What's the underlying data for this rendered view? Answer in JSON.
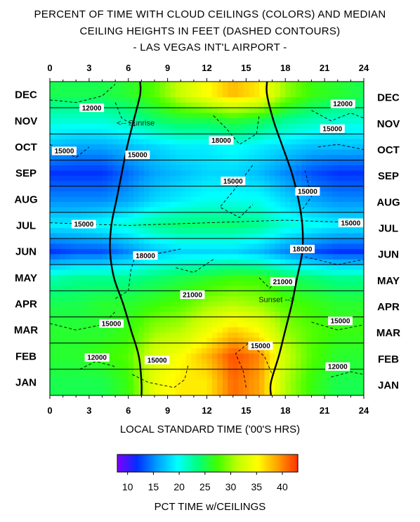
{
  "chart_data": {
    "type": "heatmap",
    "title_lines": [
      "PERCENT OF TIME WITH CLOUD CEILINGS (COLORS) AND MEDIAN",
      "CEILING HEIGHTS IN FEET (DASHED CONTOURS)",
      "- LAS VEGAS INT'L AIRPORT -"
    ],
    "xlabel": "LOCAL STANDARD TIME ('00'S HRS)",
    "x_ticks": [
      "0",
      "3",
      "6",
      "9",
      "12",
      "15",
      "18",
      "21",
      "24"
    ],
    "xlim": [
      0,
      24
    ],
    "y_categories": [
      "JAN",
      "FEB",
      "MAR",
      "APR",
      "MAY",
      "JUN",
      "JUL",
      "AUG",
      "SEP",
      "OCT",
      "NOV",
      "DEC"
    ],
    "colorbar": {
      "label": "PCT TIME w/CEILINGS",
      "ticks": [
        "10",
        "15",
        "20",
        "25",
        "30",
        "35",
        "40"
      ],
      "range": [
        8,
        43
      ],
      "colors": [
        "#7f00ff",
        "#0030ff",
        "#00a0ff",
        "#00ffff",
        "#00ff7f",
        "#40ff00",
        "#c0ff00",
        "#ffff00",
        "#ffa000",
        "#ff3000"
      ]
    },
    "hours": [
      0,
      2,
      4,
      6,
      8,
      10,
      12,
      14,
      16,
      18,
      20,
      22,
      24
    ],
    "values": [
      [
        25,
        25,
        25,
        27,
        34,
        36,
        36,
        41,
        39,
        31,
        27,
        25,
        25
      ],
      [
        26,
        26,
        27,
        28,
        33,
        35,
        38,
        42,
        40,
        32,
        28,
        26,
        26
      ],
      [
        26,
        26,
        26,
        27,
        30,
        31,
        34,
        37,
        35,
        30,
        28,
        27,
        27
      ],
      [
        25,
        25,
        26,
        26,
        27,
        28,
        30,
        31,
        30,
        28,
        27,
        26,
        26
      ],
      [
        22,
        23,
        23,
        23,
        24,
        25,
        26,
        27,
        27,
        25,
        24,
        23,
        23
      ],
      [
        12,
        13,
        13,
        15,
        17,
        18,
        18,
        18,
        17,
        15,
        13,
        12,
        12
      ],
      [
        19,
        19,
        20,
        21,
        23,
        24,
        24,
        24,
        23,
        21,
        20,
        19,
        19
      ],
      [
        15,
        15,
        15,
        16,
        18,
        19,
        20,
        20,
        20,
        18,
        16,
        15,
        15
      ],
      [
        12,
        12,
        12,
        14,
        16,
        17,
        18,
        18,
        17,
        15,
        13,
        12,
        12
      ],
      [
        17,
        16,
        16,
        17,
        18,
        19,
        19,
        20,
        19,
        18,
        17,
        17,
        17
      ],
      [
        21,
        21,
        21,
        22,
        24,
        25,
        25,
        26,
        25,
        23,
        22,
        21,
        21
      ],
      [
        25,
        25,
        25,
        26,
        28,
        32,
        35,
        38,
        36,
        30,
        27,
        26,
        25
      ]
    ],
    "sunrise_hours": [
      7.0,
      6.8,
      6.2,
      5.6,
      4.9,
      4.6,
      4.7,
      5.1,
      5.5,
      5.9,
      6.4,
      6.9
    ],
    "sunset_hours": [
      16.9,
      17.5,
      18.0,
      18.5,
      18.9,
      19.3,
      19.3,
      19.0,
      18.5,
      17.8,
      17.1,
      16.6
    ],
    "annotations": [
      "<-- Sunrise",
      "Sunset -->"
    ],
    "contour_labels": [
      {
        "text": "12000",
        "hour": 3.2,
        "month_pos": 11.0
      },
      {
        "text": "12000",
        "hour": 22.4,
        "month_pos": 11.15
      },
      {
        "text": "18000",
        "hour": 13.1,
        "month_pos": 9.75
      },
      {
        "text": "15000",
        "hour": 1.1,
        "month_pos": 9.35
      },
      {
        "text": "15000",
        "hour": 6.7,
        "month_pos": 9.2
      },
      {
        "text": "15000",
        "hour": 21.6,
        "month_pos": 10.2
      },
      {
        "text": "15000",
        "hour": 14.0,
        "month_pos": 8.2
      },
      {
        "text": "15000",
        "hour": 19.7,
        "month_pos": 7.8
      },
      {
        "text": "15000",
        "hour": 2.6,
        "month_pos": 6.55
      },
      {
        "text": "15000",
        "hour": 23.0,
        "month_pos": 6.6
      },
      {
        "text": "18000",
        "hour": 7.3,
        "month_pos": 5.35
      },
      {
        "text": "18000",
        "hour": 19.3,
        "month_pos": 5.6
      },
      {
        "text": "21000",
        "hour": 10.9,
        "month_pos": 3.85
      },
      {
        "text": "21000",
        "hour": 17.8,
        "month_pos": 4.35
      },
      {
        "text": "15000",
        "hour": 4.7,
        "month_pos": 2.75
      },
      {
        "text": "15000",
        "hour": 22.2,
        "month_pos": 2.85
      },
      {
        "text": "15000",
        "hour": 16.1,
        "month_pos": 1.9
      },
      {
        "text": "12000",
        "hour": 3.6,
        "month_pos": 1.45
      },
      {
        "text": "15000",
        "hour": 8.2,
        "month_pos": 1.35
      },
      {
        "text": "12000",
        "hour": 22.0,
        "month_pos": 1.1
      }
    ]
  }
}
